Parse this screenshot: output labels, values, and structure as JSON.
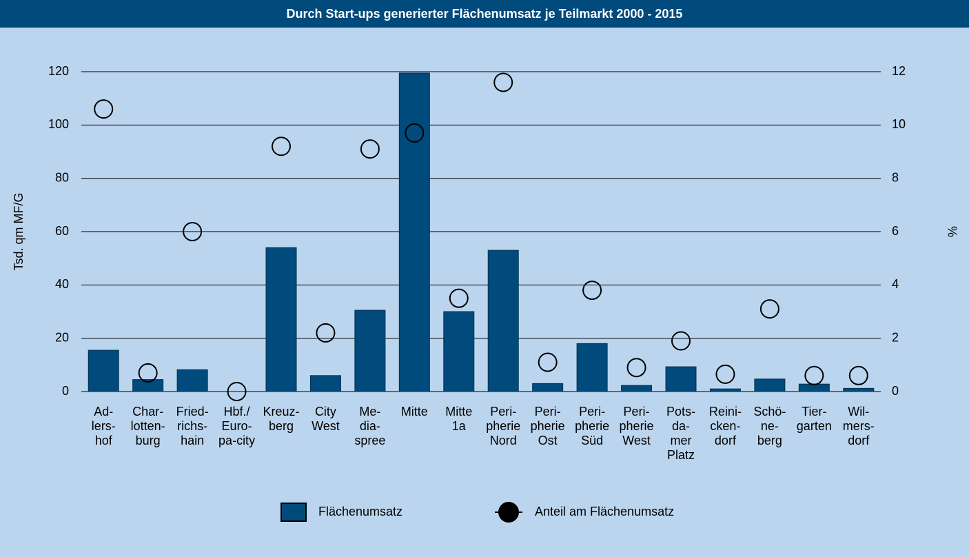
{
  "chart_data": {
    "type": "combo",
    "title": "Durch Start-ups generierter Flächenumsatz je Teilmarkt 2000 - 2015",
    "y_label": "Tsd. qm MF/G",
    "y2_label": "%",
    "categories": [
      [
        "Ad-",
        "lers-",
        "hof"
      ],
      [
        "Char-",
        "lotten-",
        "burg"
      ],
      [
        "Fried-",
        "richs-",
        "hain"
      ],
      [
        "Hbf./",
        "Euro-",
        "pa-city"
      ],
      [
        "Kreuz-",
        "berg"
      ],
      [
        "City",
        "West"
      ],
      [
        "Me-",
        "dia-",
        "spree"
      ],
      [
        "Mitte"
      ],
      [
        "Mitte",
        "1a"
      ],
      [
        "Peri-",
        "pherie",
        "Nord"
      ],
      [
        "Peri-",
        "pherie",
        "Ost"
      ],
      [
        "Peri-",
        "pherie",
        "Süd"
      ],
      [
        "Peri-",
        "pherie",
        "West"
      ],
      [
        "Pots-",
        "da-",
        "mer",
        "Platz"
      ],
      [
        "Reini-",
        "cken-",
        "dorf"
      ],
      [
        "Schö-",
        "ne-",
        "berg"
      ],
      [
        "Tier-",
        "garten"
      ],
      [
        "Wil-",
        "mers-",
        "dorf"
      ]
    ],
    "series": [
      {
        "name": "Flächenumsatz",
        "type": "bar",
        "color": "#004a7c",
        "values": [
          15.5,
          4.5,
          8.2,
          0,
          54,
          6,
          30.5,
          119.5,
          30,
          53,
          3,
          18,
          2.3,
          9.3,
          1,
          4.7,
          2.8,
          1.2
        ]
      },
      {
        "name": "Anteil am Flächenumsatz",
        "type": "scatter",
        "axis": "y2",
        "color": "#000000",
        "values": [
          10.6,
          0.7,
          6.0,
          0,
          9.2,
          2.2,
          9.1,
          9.7,
          3.5,
          11.6,
          1.1,
          3.8,
          0.9,
          1.9,
          0.65,
          3.1,
          0.6,
          0.6
        ]
      }
    ],
    "ylim": [
      0,
      120
    ],
    "yticks": [
      0,
      20,
      40,
      60,
      80,
      100,
      120
    ],
    "y2lim": [
      0,
      12
    ],
    "y2ticks": [
      0,
      2,
      4,
      6,
      8,
      10,
      12
    ],
    "grid": true,
    "legend": "bottom"
  }
}
